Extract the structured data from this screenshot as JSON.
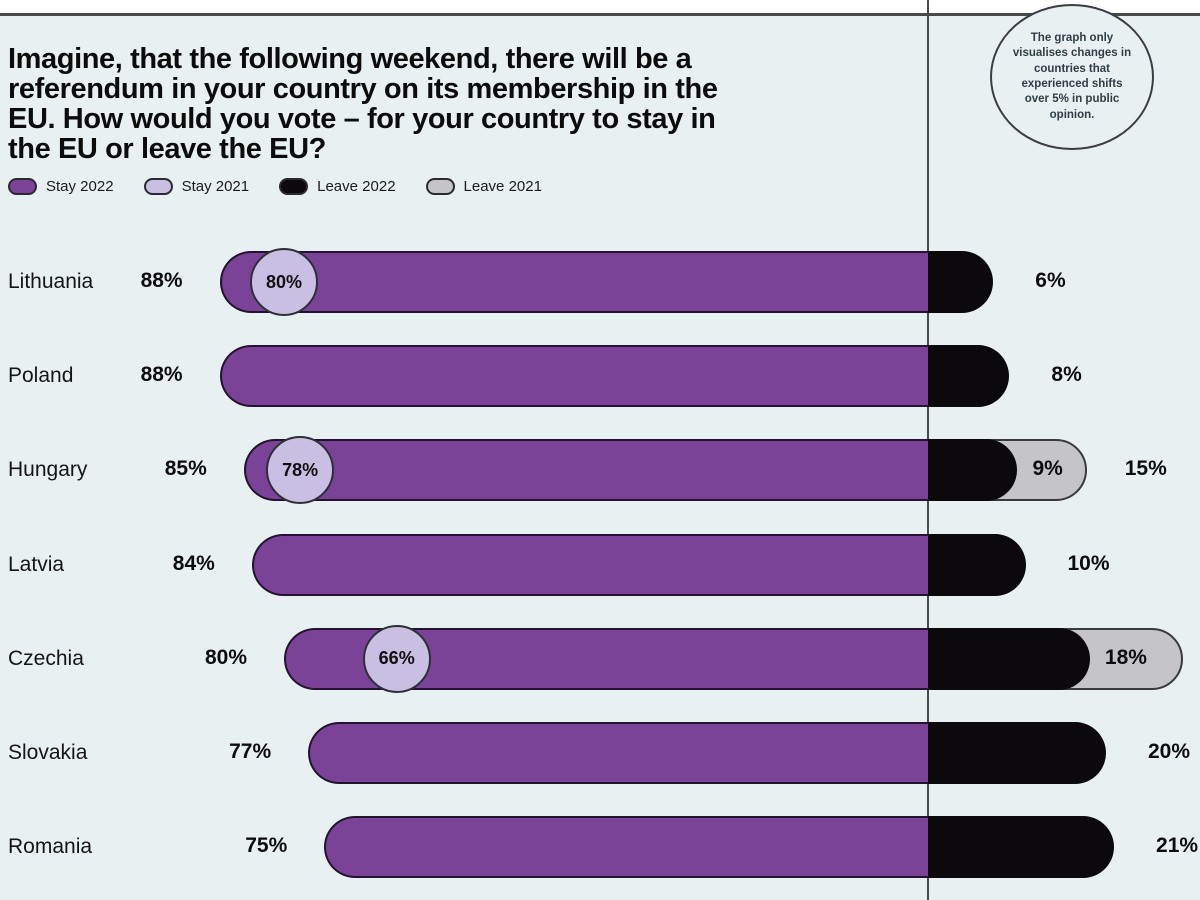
{
  "title_lines": [
    "Imagine, that the following weekend, there will be a",
    "referendum in your country on its membership in the",
    "EU. How would you vote – for your country to stay in",
    "the EU or leave the EU?"
  ],
  "annotation_note": "The graph only visualises changes in countries that experienced shifts over 5% in public opinion.",
  "colors": {
    "stay_2022": "#7b4397",
    "stay_2021": "#c8bfe3",
    "leave_2022": "#0b090c",
    "leave_2021": "#c5c4c7",
    "background": "#e9f0f1",
    "rule_line": "#4a4a4a"
  },
  "legend": {
    "items": [
      {
        "label": "Stay 2022",
        "color_key": "stay_2022"
      },
      {
        "label": "Stay  2021",
        "color_key": "stay_2021"
      },
      {
        "label": "Leave 2022",
        "color_key": "leave_2022"
      },
      {
        "label": "Leave 2021",
        "color_key": "leave_2021"
      }
    ]
  },
  "chart_data": {
    "type": "bar",
    "orientation": "horizontal-diverging",
    "title": "Imagine, that the following weekend, there will be a referendum in your country on its membership in the EU. How would you vote – for your country to stay in the EU or leave the EU?",
    "note": "The graph only visualises changes in countries that experienced shifts over 5% in public opinion.",
    "legend_entries": [
      "Stay 2022",
      "Stay 2021",
      "Leave 2022",
      "Leave 2021"
    ],
    "legend_position": "top-left",
    "value_axis_range": [
      0,
      100
    ],
    "grid": false,
    "rows": [
      {
        "country": "Lithuania",
        "stay_2022": 88,
        "stay_2022_label": "88%",
        "stay_2021": 80,
        "stay_2021_label": "80%",
        "leave_2022": 6,
        "leave_2022_label": "6%",
        "leave_2021": null,
        "leave_2021_label": ""
      },
      {
        "country": "Poland",
        "stay_2022": 88,
        "stay_2022_label": "88%",
        "stay_2021": null,
        "stay_2021_label": "",
        "leave_2022": 8,
        "leave_2022_label": "8%",
        "leave_2021": null,
        "leave_2021_label": ""
      },
      {
        "country": "Hungary",
        "stay_2022": 85,
        "stay_2022_label": "85%",
        "stay_2021": 78,
        "stay_2021_label": "78%",
        "leave_2022": 9,
        "leave_2022_label": "9%",
        "leave_2021": 15,
        "leave_2021_label": "15%"
      },
      {
        "country": "Latvia",
        "stay_2022": 84,
        "stay_2022_label": "84%",
        "stay_2021": null,
        "stay_2021_label": "",
        "leave_2022": 10,
        "leave_2022_label": "10%",
        "leave_2021": null,
        "leave_2021_label": ""
      },
      {
        "country": "Czechia",
        "stay_2022": 80,
        "stay_2022_label": "80%",
        "stay_2021": 66,
        "stay_2021_label": "66%",
        "leave_2022": 18,
        "leave_2022_label": "18%",
        "leave_2021": 27,
        "leave_2021_label": ""
      },
      {
        "country": "Slovakia",
        "stay_2022": 77,
        "stay_2022_label": "77%",
        "stay_2021": null,
        "stay_2021_label": "",
        "leave_2022": 20,
        "leave_2022_label": "20%",
        "leave_2021": null,
        "leave_2021_label": ""
      },
      {
        "country": "Romania",
        "stay_2022": 75,
        "stay_2022_label": "75%",
        "stay_2021": null,
        "stay_2021_label": "",
        "leave_2022": 21,
        "leave_2022_label": "21%",
        "leave_2021": null,
        "leave_2021_label": ""
      }
    ]
  }
}
